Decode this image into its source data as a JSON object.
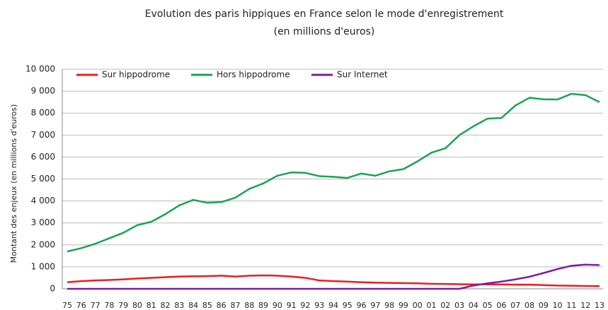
{
  "chart_data": {
    "type": "line",
    "title": "Evolution des paris hippiques en France selon le mode d'enregistrement",
    "subtitle": "(en millions d'euros)",
    "y_label": "Montant des enjeux (en millions d'euros)",
    "categories": [
      "75",
      "76",
      "77",
      "78",
      "79",
      "80",
      "81",
      "82",
      "83",
      "84",
      "85",
      "86",
      "87",
      "88",
      "89",
      "90",
      "91",
      "92",
      "93",
      "94",
      "95",
      "96",
      "97",
      "98",
      "99",
      "00",
      "01",
      "02",
      "03",
      "04",
      "05",
      "06",
      "07",
      "08",
      "09",
      "10",
      "11",
      "12",
      "13"
    ],
    "series": [
      {
        "name": "Sur hippodrome",
        "color": "#ee1c1c",
        "values": [
          300,
          350,
          380,
          400,
          430,
          470,
          500,
          530,
          560,
          570,
          580,
          600,
          560,
          600,
          610,
          600,
          560,
          500,
          380,
          350,
          330,
          300,
          280,
          270,
          260,
          250,
          230,
          220,
          210,
          200,
          200,
          200,
          190,
          190,
          170,
          150,
          140,
          130,
          120
        ]
      },
      {
        "name": "Hors hippodrome",
        "color": "#1aa353",
        "values": [
          1700,
          1850,
          2050,
          2300,
          2550,
          2900,
          3050,
          3400,
          3800,
          4050,
          3920,
          3950,
          4150,
          4550,
          4800,
          5150,
          5300,
          5280,
          5130,
          5100,
          5050,
          5250,
          5150,
          5350,
          5450,
          5800,
          6200,
          6400,
          7000,
          7400,
          7750,
          7780,
          8350,
          8700,
          8630,
          8620,
          8880,
          8820,
          8500
        ]
      },
      {
        "name": "Sur Internet",
        "color": "#7a1fa0",
        "values": [
          0,
          0,
          0,
          0,
          0,
          0,
          0,
          0,
          0,
          0,
          0,
          0,
          0,
          0,
          0,
          0,
          0,
          0,
          0,
          0,
          0,
          0,
          0,
          0,
          0,
          0,
          0,
          0,
          0,
          150,
          250,
          330,
          430,
          550,
          720,
          900,
          1050,
          1100,
          1080
        ]
      }
    ],
    "ylim": [
      0,
      10000
    ],
    "yticks": [
      0,
      {
        "value": 1000,
        "label": "1 000"
      },
      {
        "value": 2000,
        "label": "2 000"
      },
      {
        "value": 3000,
        "label": "3 000"
      },
      {
        "value": 4000,
        "label": "4 000"
      },
      {
        "value": 5000,
        "label": "5 000"
      },
      {
        "value": 6000,
        "label": "6 000"
      },
      {
        "value": 7000,
        "label": "7 000"
      },
      {
        "value": 8000,
        "label": "8 000"
      },
      {
        "value": 9000,
        "label": "9 000"
      },
      {
        "value": 10000,
        "label": "10 000"
      }
    ],
    "grid": true
  }
}
